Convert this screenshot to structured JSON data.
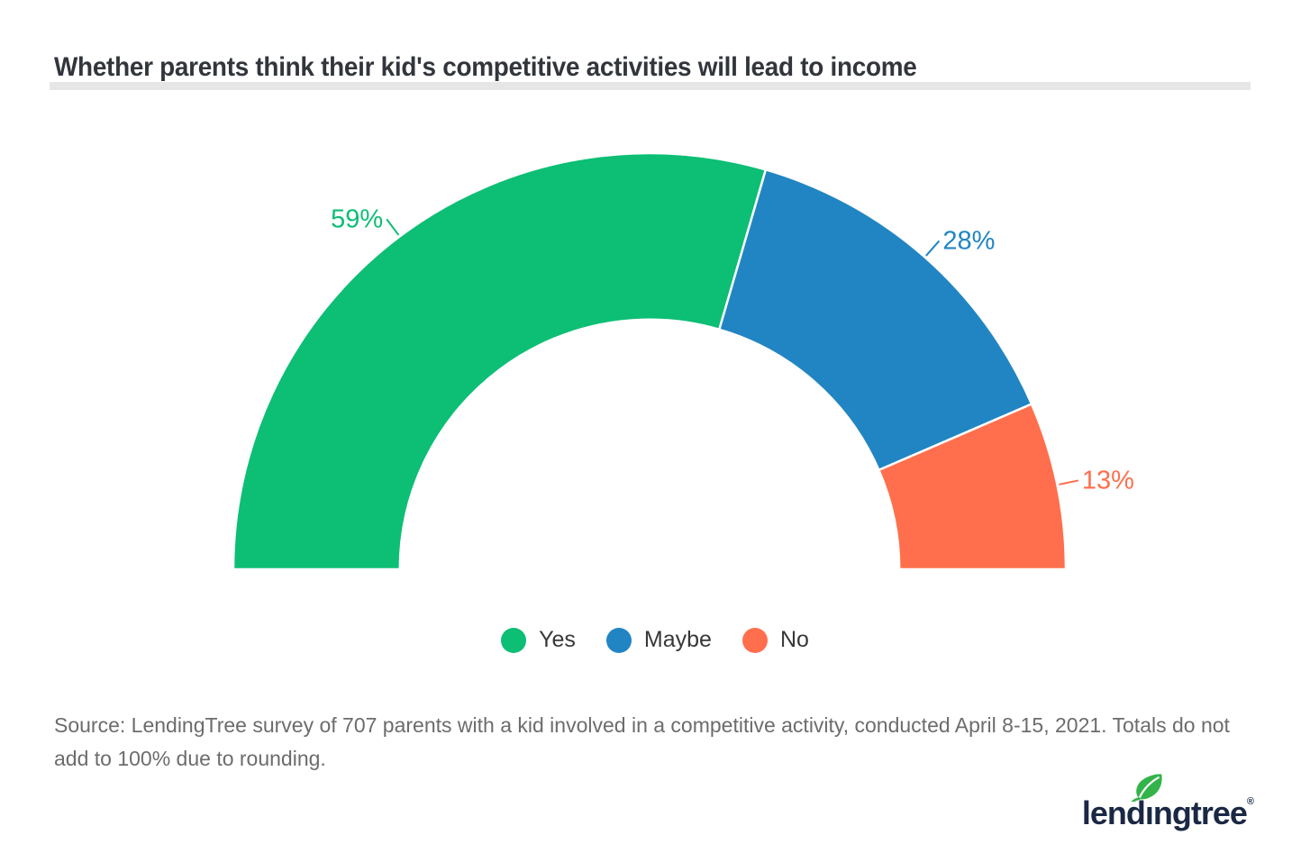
{
  "header": {
    "title": "Whether parents think their kid's competitive activities will lead to income"
  },
  "chart_data": {
    "type": "pie",
    "variant": "semicircle-donut",
    "title": "Whether parents think their kid's competitive activities will lead to income",
    "categories": [
      "Yes",
      "Maybe",
      "No"
    ],
    "values": [
      59,
      28,
      13
    ],
    "data_labels": [
      "59%",
      "28%",
      "13%"
    ],
    "colors": [
      "#0DBE75",
      "#2285C3",
      "#FF6F4D"
    ],
    "start_angle_deg": 180,
    "end_angle_deg": 0,
    "inner_radius_ratio": 0.6,
    "legend_position": "bottom",
    "grid": false
  },
  "footer": {
    "source_note": "Source: LendingTree survey of 707 parents with a kid involved in a competitive activity, conducted April 8-15, 2021. Totals do not add to 100% due to rounding.",
    "brand": {
      "name": "lendingtree",
      "registered_mark": "®"
    }
  }
}
